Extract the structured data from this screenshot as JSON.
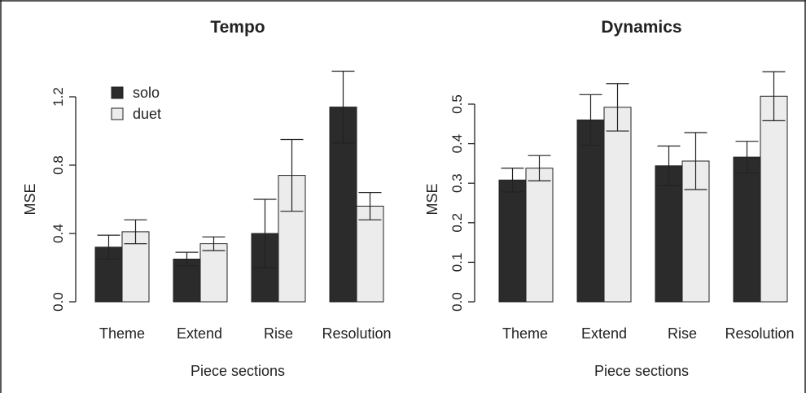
{
  "colors": {
    "solo": "#2b2b2b",
    "duet": "#ececec",
    "stroke": "#222222"
  },
  "chart_data": [
    {
      "type": "bar",
      "title": "Tempo",
      "xlabel": "Piece sections",
      "ylabel": "MSE",
      "ylim": [
        0,
        1.2
      ],
      "yticks": [
        0.0,
        0.4,
        0.8,
        1.2
      ],
      "ytick_labels": [
        "0.0",
        "0.4",
        "0.8",
        "1.2"
      ],
      "categories": [
        "Theme",
        "Extend",
        "Rise",
        "Resolution"
      ],
      "series": [
        {
          "name": "solo",
          "values": [
            0.32,
            0.25,
            0.4,
            1.14
          ],
          "err_low": [
            0.25,
            0.21,
            0.2,
            0.93
          ],
          "err_high": [
            0.39,
            0.29,
            0.6,
            1.35
          ]
        },
        {
          "name": "duet",
          "values": [
            0.41,
            0.34,
            0.74,
            0.56
          ],
          "err_low": [
            0.34,
            0.3,
            0.53,
            0.48
          ],
          "err_high": [
            0.48,
            0.38,
            0.95,
            0.64
          ]
        }
      ],
      "legend": "top-left"
    },
    {
      "type": "bar",
      "title": "Dynamics",
      "xlabel": "Piece sections",
      "ylabel": "MSE",
      "ylim": [
        0,
        0.5
      ],
      "yticks": [
        0.0,
        0.1,
        0.2,
        0.3,
        0.4,
        0.5
      ],
      "ytick_labels": [
        "0.0",
        "0.1",
        "0.2",
        "0.3",
        "0.4",
        "0.5"
      ],
      "categories": [
        "Theme",
        "Extend",
        "Rise",
        "Resolution"
      ],
      "series": [
        {
          "name": "solo",
          "values": [
            0.308,
            0.46,
            0.344,
            0.366
          ],
          "err_low": [
            0.278,
            0.396,
            0.294,
            0.326
          ],
          "err_high": [
            0.338,
            0.524,
            0.394,
            0.406
          ]
        },
        {
          "name": "duet",
          "values": [
            0.338,
            0.492,
            0.356,
            0.52
          ],
          "err_low": [
            0.306,
            0.432,
            0.284,
            0.458
          ],
          "err_high": [
            0.37,
            0.552,
            0.428,
            0.582
          ]
        }
      ]
    }
  ]
}
